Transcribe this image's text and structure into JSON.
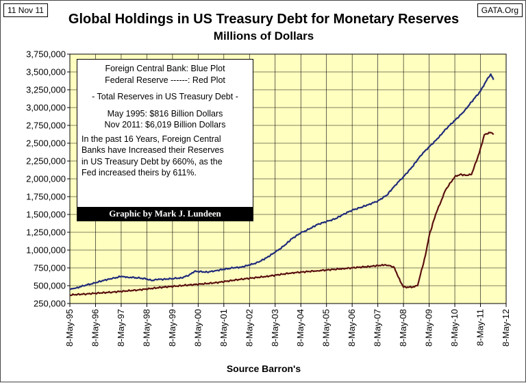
{
  "header": {
    "date": "11 Nov 11",
    "source_site": "GATA.Org"
  },
  "chart_data": {
    "type": "line",
    "title": "Global Holdings in US Treasury Debt for Monetary Reserves",
    "subtitle": "Millions of Dollars",
    "xlabel": "Source Barron's",
    "ylabel": "",
    "ylim": [
      250000,
      3750000
    ],
    "xlim": [
      1995.35,
      2012.35
    ],
    "grid": true,
    "background": "#ffffc0",
    "y_ticks": [
      "3,750,000",
      "3,500,000",
      "3,250,000",
      "3,000,000",
      "2,750,000",
      "2,500,000",
      "2,250,000",
      "2,000,000",
      "1,750,000",
      "1,500,000",
      "1,250,000",
      "1,000,000",
      "750,000",
      "500,000",
      "250,000"
    ],
    "x_ticks": [
      "8-May-95",
      "8-May-96",
      "8-May-97",
      "8-May-98",
      "8-May-99",
      "8-May-00",
      "8-May-01",
      "8-May-02",
      "8-May-03",
      "8-May-04",
      "8-May-05",
      "8-May-06",
      "8-May-07",
      "8-May-08",
      "8-May-09",
      "8-May-10",
      "8-May-11",
      "8-May-12"
    ],
    "series": [
      {
        "name": "Foreign Central Bank",
        "color": "#1f2a7a",
        "x": [
          1995.35,
          1995.6,
          1996.0,
          1996.35,
          1996.7,
          1997.0,
          1997.35,
          1997.6,
          1998.0,
          1998.35,
          1998.55,
          1998.7,
          1999.0,
          1999.35,
          1999.7,
          2000.0,
          2000.2,
          2000.35,
          2000.7,
          2001.0,
          2001.35,
          2001.7,
          2002.0,
          2002.35,
          2002.7,
          2003.0,
          2003.35,
          2003.7,
          2004.0,
          2004.35,
          2004.7,
          2005.0,
          2005.35,
          2005.7,
          2006.0,
          2006.35,
          2006.7,
          2007.0,
          2007.35,
          2007.7,
          2008.0,
          2008.35,
          2008.7,
          2009.0,
          2009.35,
          2009.7,
          2010.0,
          2010.35,
          2010.7,
          2011.0,
          2011.35,
          2011.55,
          2011.75,
          2011.86
        ],
        "values": [
          450000,
          470000,
          510000,
          540000,
          580000,
          600000,
          630000,
          620000,
          610000,
          595000,
          570000,
          590000,
          590000,
          600000,
          610000,
          650000,
          700000,
          700000,
          690000,
          710000,
          730000,
          750000,
          760000,
          790000,
          830000,
          890000,
          970000,
          1060000,
          1160000,
          1240000,
          1300000,
          1360000,
          1400000,
          1440000,
          1500000,
          1560000,
          1600000,
          1640000,
          1690000,
          1770000,
          1900000,
          2030000,
          2170000,
          2320000,
          2450000,
          2570000,
          2700000,
          2820000,
          2940000,
          3080000,
          3230000,
          3360000,
          3470000,
          3390000
        ]
      },
      {
        "name": "Federal Reserve",
        "color": "#5a1010",
        "x": [
          1995.35,
          1996.0,
          1997.0,
          1998.0,
          1999.0,
          2000.0,
          2001.0,
          2002.0,
          2003.0,
          2004.0,
          2005.0,
          2006.0,
          2007.0,
          2007.6,
          2007.85,
          2008.0,
          2008.15,
          2008.35,
          2008.7,
          2008.9,
          2009.2,
          2009.35,
          2009.6,
          2010.0,
          2010.35,
          2010.55,
          2010.8,
          2011.0,
          2011.3,
          2011.5,
          2011.75,
          2011.86
        ],
        "values": [
          370000,
          385000,
          410000,
          440000,
          480000,
          510000,
          540000,
          590000,
          630000,
          680000,
          710000,
          740000,
          770000,
          790000,
          780000,
          750000,
          620000,
          480000,
          480000,
          500000,
          920000,
          1200000,
          1500000,
          1850000,
          2030000,
          2060000,
          2050000,
          2060000,
          2360000,
          2620000,
          2650000,
          2620000
        ]
      }
    ]
  },
  "legend": {
    "line1": "Foreign Central Bank: Blue Plot",
    "line2": "Federal Reserve ------: Red Plot",
    "line3": "- Total Reserves in US Treasury Debt -",
    "line4": "May 1995:  $816 Billion Dollars",
    "line5": "Nov 2011: $6,019 Billion Dollars",
    "note1": "In the past 16 Years, Foreign Central",
    "note2": "Banks have Increased their Reserves",
    "note3": "in US Treasury Debt by 660%, as the",
    "note4": "Fed increased theirs by 611%.",
    "credit": "Graphic by Mark J. Lundeen"
  }
}
